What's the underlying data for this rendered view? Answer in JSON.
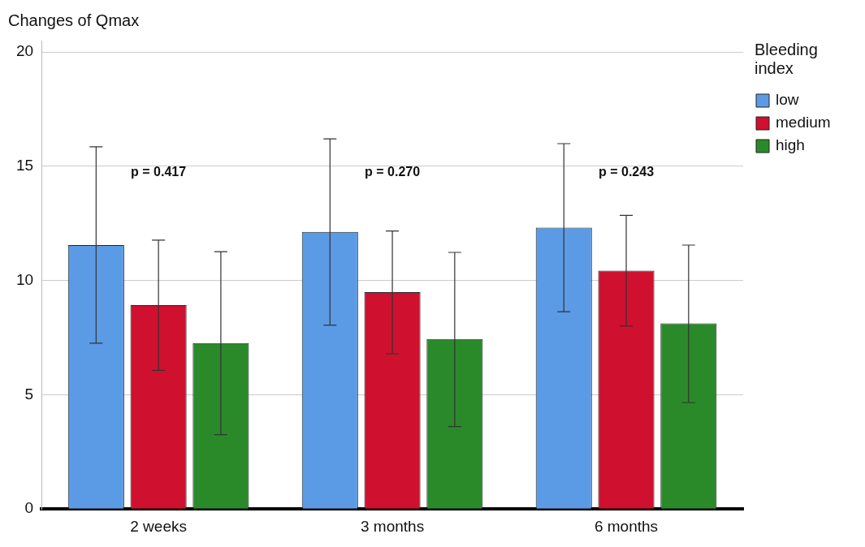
{
  "chart_data": {
    "type": "bar",
    "ylabel": "Changes of Qmax",
    "legend_title": "Bleeding index",
    "categories": [
      "2 weeks",
      "3 months",
      "6 months"
    ],
    "series": [
      {
        "name": "low",
        "color": "#5b9be6",
        "values": [
          11.55,
          12.13,
          12.31
        ],
        "errors": [
          [
            7.26,
            15.85
          ],
          [
            8.05,
            16.2
          ],
          [
            8.63,
            15.99
          ]
        ]
      },
      {
        "name": "medium",
        "color": "#d0102f",
        "values": [
          8.92,
          9.49,
          10.43
        ],
        "errors": [
          [
            6.07,
            11.77
          ],
          [
            6.79,
            12.17
          ],
          [
            8.01,
            12.85
          ]
        ]
      },
      {
        "name": "high",
        "color": "#2a8a2a",
        "values": [
          7.26,
          7.44,
          8.12
        ],
        "errors": [
          [
            3.25,
            11.26
          ],
          [
            3.61,
            11.23
          ],
          [
            4.66,
            11.55
          ]
        ]
      }
    ],
    "annotations": [
      "p = 0.417",
      "p = 0.270",
      "p = 0.243"
    ],
    "ylim": [
      0,
      20.5
    ],
    "yticks": [
      0,
      5,
      10,
      15,
      20
    ],
    "grid": "y",
    "legend": "top right"
  }
}
